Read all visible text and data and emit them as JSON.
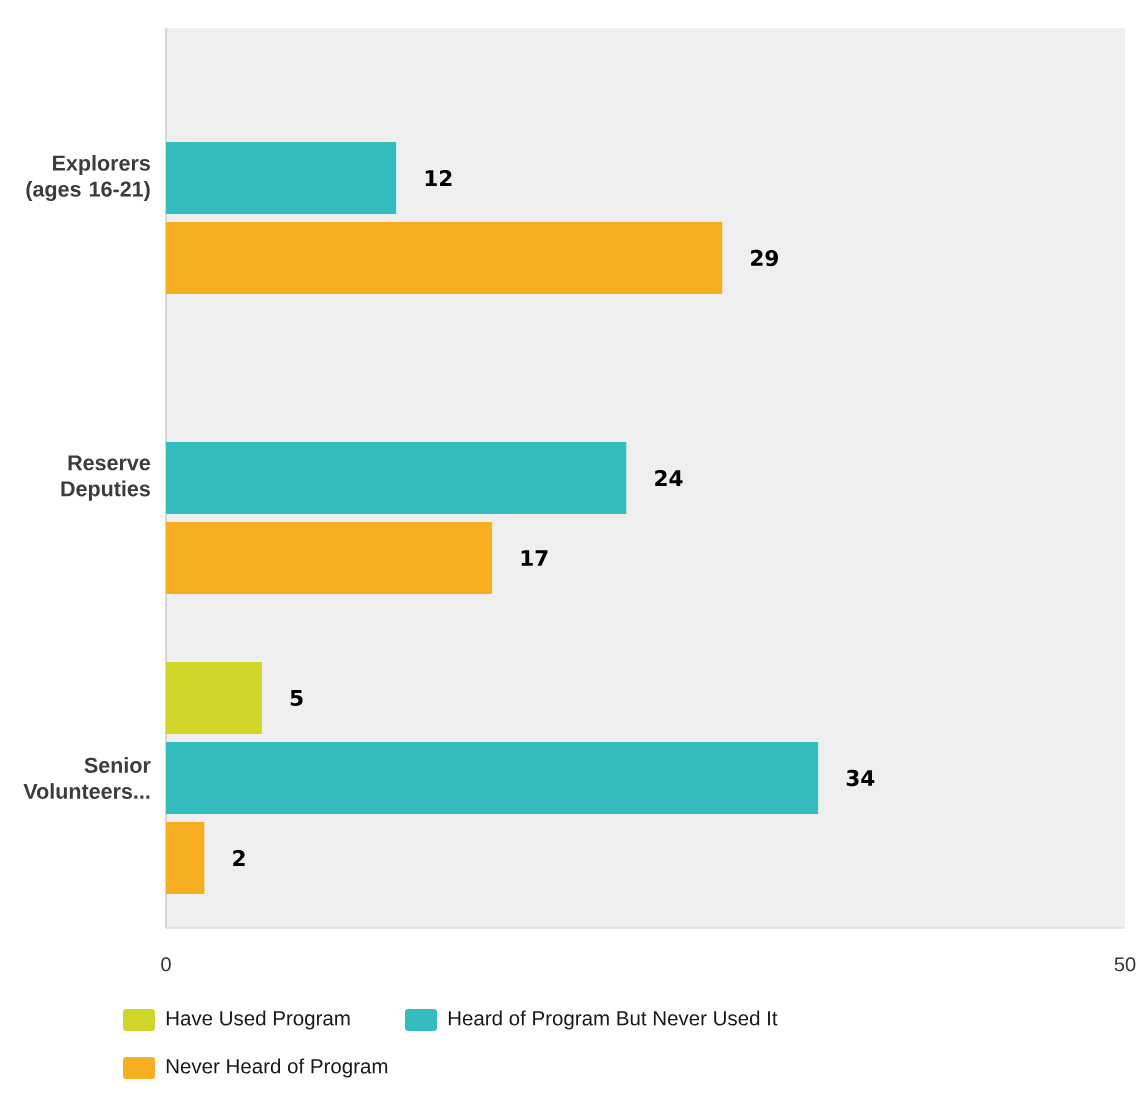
{
  "chart_data": {
    "type": "bar",
    "orientation": "horizontal",
    "categories": [
      "Explorers (ages 16-21)",
      "Reserve Deputies",
      "Senior Volunteers..."
    ],
    "series": [
      {
        "name": "Have Used Program",
        "color": "#cfd52a",
        "values": [
          null,
          null,
          5
        ]
      },
      {
        "name": "Heard of Program But Never Used It",
        "color": "#33bdbf",
        "values": [
          12,
          24,
          34
        ]
      },
      {
        "name": "Never Heard of Program",
        "color": "#f6af20",
        "values": [
          29,
          17,
          2
        ]
      }
    ],
    "xlim": [
      0,
      50
    ],
    "xticks": [
      0,
      50
    ],
    "data_labels": true,
    "legend": "bottom"
  }
}
